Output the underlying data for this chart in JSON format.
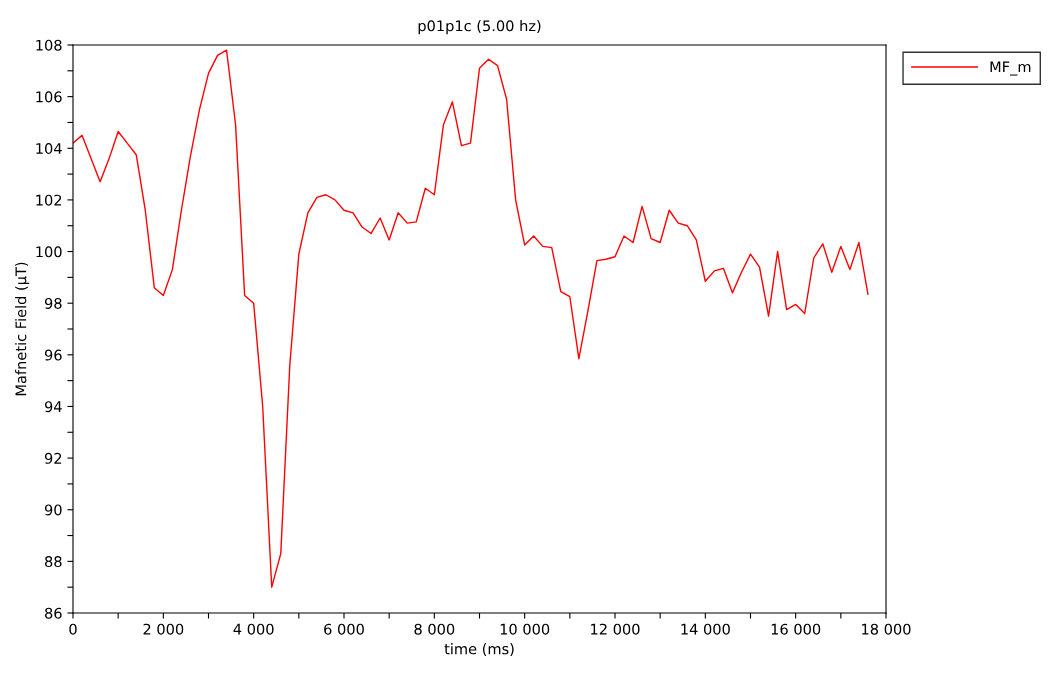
{
  "chart_data": {
    "type": "line",
    "title": "p01p1c (5.00 hz)",
    "xlabel": "time (ms)",
    "ylabel": "Mafnetic Field (µT)",
    "x": [
      0,
      200,
      400,
      600,
      800,
      1000,
      1200,
      1400,
      1600,
      1800,
      2000,
      2200,
      2400,
      2600,
      2800,
      3000,
      3200,
      3400,
      3600,
      3800,
      4000,
      4200,
      4400,
      4600,
      4800,
      5000,
      5200,
      5400,
      5600,
      5800,
      6000,
      6200,
      6400,
      6600,
      6800,
      7000,
      7200,
      7400,
      7600,
      7800,
      8000,
      8200,
      8400,
      8600,
      8800,
      9000,
      9200,
      9400,
      9600,
      9800,
      10000,
      10200,
      10400,
      10600,
      10800,
      11000,
      11200,
      11400,
      11600,
      11800,
      12000,
      12200,
      12400,
      12600,
      12800,
      13000,
      13200,
      13400,
      13600,
      13800,
      14000,
      14200,
      14400,
      14600,
      14800,
      15000,
      15200,
      15400,
      15600,
      15800,
      16000,
      16200,
      16400,
      16600,
      16800,
      17000,
      17200,
      17400,
      17600
    ],
    "series": [
      {
        "name": "MF_m",
        "color": "#ff0000",
        "values": [
          104.2,
          104.5,
          103.6,
          102.7,
          103.6,
          104.65,
          104.2,
          103.75,
          101.6,
          98.6,
          98.3,
          99.3,
          101.6,
          103.7,
          105.5,
          106.9,
          107.6,
          107.8,
          104.9,
          98.3,
          98.0,
          94.0,
          87.0,
          88.3,
          95.6,
          99.9,
          101.5,
          102.1,
          102.2,
          102.0,
          101.6,
          101.5,
          100.95,
          100.7,
          101.3,
          100.45,
          101.5,
          101.1,
          101.15,
          102.45,
          102.2,
          104.9,
          105.8,
          104.1,
          104.2,
          107.1,
          107.45,
          107.2,
          105.9,
          102.0,
          100.25,
          100.6,
          100.2,
          100.15,
          98.45,
          98.25,
          95.85,
          97.7,
          99.65,
          99.7,
          99.8,
          100.6,
          100.35,
          101.75,
          100.5,
          100.35,
          101.6,
          101.1,
          101.0,
          100.45,
          98.85,
          99.25,
          99.35,
          98.4,
          99.2,
          99.9,
          99.4,
          97.5,
          100.0,
          97.75,
          97.95,
          97.6,
          99.75,
          100.3,
          99.2,
          100.2,
          99.3,
          100.35,
          98.35
        ]
      }
    ],
    "xlim": [
      0,
      18000
    ],
    "ylim": [
      86,
      108
    ],
    "xticks": [
      {
        "value": 0,
        "label": "0"
      },
      {
        "value": 1000,
        "label": null
      },
      {
        "value": 2000,
        "label": "2 000"
      },
      {
        "value": 3000,
        "label": null
      },
      {
        "value": 4000,
        "label": "4 000"
      },
      {
        "value": 5000,
        "label": null
      },
      {
        "value": 6000,
        "label": "6 000"
      },
      {
        "value": 7000,
        "label": null
      },
      {
        "value": 8000,
        "label": "8 000"
      },
      {
        "value": 9000,
        "label": null
      },
      {
        "value": 10000,
        "label": "10 000"
      },
      {
        "value": 11000,
        "label": null
      },
      {
        "value": 12000,
        "label": "12 000"
      },
      {
        "value": 13000,
        "label": null
      },
      {
        "value": 14000,
        "label": "14 000"
      },
      {
        "value": 15000,
        "label": null
      },
      {
        "value": 16000,
        "label": "16 000"
      },
      {
        "value": 17000,
        "label": null
      },
      {
        "value": 18000,
        "label": "18 000"
      }
    ],
    "yticks": [
      86,
      {
        "value": 87,
        "label": null
      },
      88,
      {
        "value": 89,
        "label": null
      },
      90,
      {
        "value": 91,
        "label": null
      },
      92,
      {
        "value": 93,
        "label": null
      },
      94,
      {
        "value": 95,
        "label": null
      },
      96,
      {
        "value": 97,
        "label": null
      },
      98,
      {
        "value": 99,
        "label": null
      },
      100,
      {
        "value": 101,
        "label": null
      },
      102,
      {
        "value": 103,
        "label": null
      },
      104,
      {
        "value": 105,
        "label": null
      },
      106,
      {
        "value": 107,
        "label": null
      },
      108
    ],
    "grid": false,
    "legend": "top right",
    "marker": "none",
    "line_style": "solid"
  }
}
